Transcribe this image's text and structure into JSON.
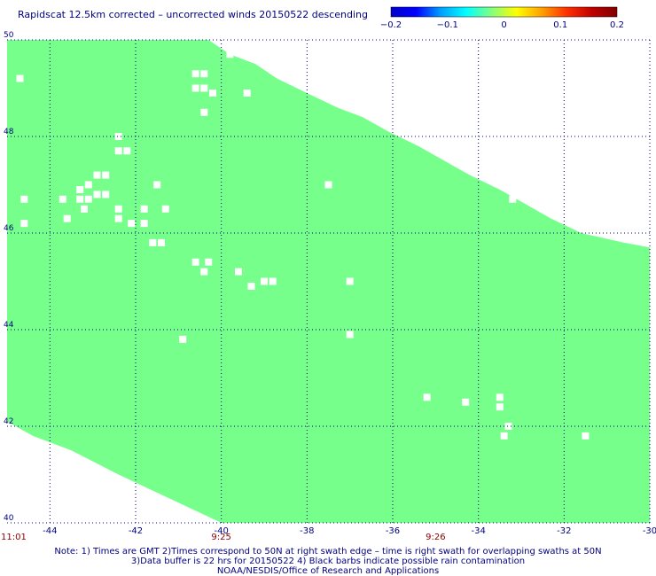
{
  "header": {
    "title": "Rapidscat 12.5km corrected – uncorrected winds 20150522 descending"
  },
  "colorbar": {
    "ticks": [
      "−0.2",
      "−0.1",
      "0",
      "0.1",
      "0.2"
    ],
    "colors": [
      "#0000c8",
      "#0000ff",
      "#00a0ff",
      "#00ffff",
      "#80ff80",
      "#ffff00",
      "#ffa000",
      "#ff3000",
      "#c00000",
      "#800000"
    ]
  },
  "chart_data": {
    "type": "heatmap",
    "title": "Rapidscat 12.5km corrected – uncorrected winds 20150522 descending",
    "x_tick_labels": [
      "-44",
      "-42",
      "-40",
      "-38",
      "-36",
      "-34",
      "-32",
      "-30"
    ],
    "y_tick_labels": [
      "40",
      "42",
      "44",
      "46",
      "48",
      "50"
    ],
    "xlim": [
      -45,
      -30
    ],
    "ylim": [
      40,
      50
    ],
    "grid": true,
    "field_value": 0,
    "field_color": "#77ff8c",
    "missing_color": "#ffffff",
    "swath_time_labels": [
      {
        "text": "11:01",
        "lon": -45
      },
      {
        "text": "9:25",
        "lon": -40
      },
      {
        "text": "9:26",
        "lon": -35
      }
    ],
    "missing_cells": [
      [
        -44.7,
        49.2
      ],
      [
        -43.6,
        46.3
      ],
      [
        -44.6,
        46.7
      ],
      [
        -44.6,
        46.2
      ],
      [
        -42.4,
        48.0
      ],
      [
        -42.4,
        47.7
      ],
      [
        -42.2,
        47.7
      ],
      [
        -42.7,
        47.2
      ],
      [
        -42.9,
        47.2
      ],
      [
        -43.1,
        47.0
      ],
      [
        -43.3,
        46.9
      ],
      [
        -43.1,
        46.7
      ],
      [
        -42.9,
        46.8
      ],
      [
        -42.7,
        46.8
      ],
      [
        -43.3,
        46.7
      ],
      [
        -43.2,
        46.5
      ],
      [
        -43.7,
        46.7
      ],
      [
        -42.4,
        46.5
      ],
      [
        -42.4,
        46.3
      ],
      [
        -41.5,
        47.0
      ],
      [
        -41.8,
        46.5
      ],
      [
        -41.3,
        46.5
      ],
      [
        -41.8,
        46.2
      ],
      [
        -42.1,
        46.2
      ],
      [
        -41.6,
        45.8
      ],
      [
        -41.4,
        45.8
      ],
      [
        -40.6,
        49.3
      ],
      [
        -40.4,
        49.3
      ],
      [
        -40.6,
        49.0
      ],
      [
        -40.4,
        49.0
      ],
      [
        -40.2,
        48.9
      ],
      [
        -39.8,
        49.7
      ],
      [
        -39.4,
        48.9
      ],
      [
        -40.4,
        48.5
      ],
      [
        -40.6,
        45.4
      ],
      [
        -40.3,
        45.4
      ],
      [
        -40.4,
        45.2
      ],
      [
        -39.6,
        45.2
      ],
      [
        -39.3,
        44.9
      ],
      [
        -39.0,
        45.0
      ],
      [
        -38.8,
        45.0
      ],
      [
        -37.5,
        47.0
      ],
      [
        -37.0,
        45.0
      ],
      [
        -37.0,
        43.9
      ],
      [
        -40.9,
        43.8
      ],
      [
        -35.2,
        42.6
      ],
      [
        -34.3,
        42.5
      ],
      [
        -33.5,
        42.6
      ],
      [
        -33.5,
        42.4
      ],
      [
        -33.3,
        42.0
      ],
      [
        -33.4,
        41.8
      ],
      [
        -31.5,
        41.8
      ],
      [
        -33.2,
        46.7
      ]
    ],
    "note_lines": [
      "Note: 1) Times are GMT 2)Times correspond to 50N at right swath edge – time is right swath for overlapping swaths at 50N",
      "3)Data buffer is 22 hrs for 20150522 4) Black barbs indicate possible rain contamination",
      "NOAA/NESDIS/Office of Research and Applications"
    ]
  }
}
